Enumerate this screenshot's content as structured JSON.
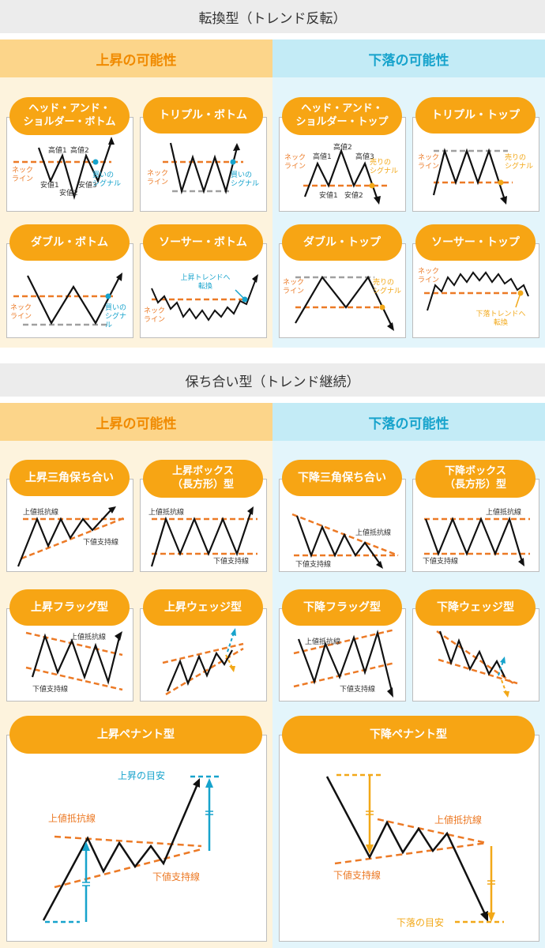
{
  "sections": [
    {
      "title": "転換型（トレンド反転）",
      "up_label": "上昇の可能性",
      "down_label": "下落の可能性"
    },
    {
      "title": "保ち合い型（トレンド継続）",
      "up_label": "上昇の可能性",
      "down_label": "下落の可能性"
    }
  ],
  "patterns": {
    "hs_bottom": {
      "title": "ヘッド・アンド・\nショルダー・ボトム",
      "neck": "ネック\nライン",
      "h1": "高値1",
      "h2": "高値2",
      "l1": "安値1",
      "l2": "安値2",
      "l3": "安値3",
      "signal": "買いの\nシグナル"
    },
    "triple_bottom": {
      "title": "トリプル・ボトム",
      "neck": "ネック\nライン",
      "signal": "買いの\nシグナル"
    },
    "double_bottom": {
      "title": "ダブル・ボトム",
      "neck": "ネック\nライン",
      "signal": "買いの\nシグナル"
    },
    "saucer_bottom": {
      "title": "ソーサー・ボトム",
      "neck": "ネック\nライン",
      "note": "上昇トレンドへ\n転換"
    },
    "hs_top": {
      "title": "ヘッド・アンド・\nショルダー・トップ",
      "neck": "ネック\nライン",
      "h1": "高値1",
      "h2": "高値2",
      "h3": "高値3",
      "l1": "安値1",
      "l2": "安値2",
      "signal": "売りの\nシグナル"
    },
    "triple_top": {
      "title": "トリプル・トップ",
      "neck": "ネック\nライン",
      "signal": "売りの\nシグナル"
    },
    "double_top": {
      "title": "ダブル・トップ",
      "neck": "ネック\nライン",
      "signal": "売りの\nシグナル"
    },
    "saucer_top": {
      "title": "ソーサー・トップ",
      "neck": "ネック\nライン",
      "note": "下落トレンドへ\n転換"
    },
    "asc_triangle": {
      "title": "上昇三角保ち合い",
      "res": "上値抵抗線",
      "sup": "下値支持線"
    },
    "box_up": {
      "title": "上昇ボックス\n（長方形）型",
      "res": "上値抵抗線",
      "sup": "下値支持線"
    },
    "desc_triangle": {
      "title": "下降三角保ち合い",
      "res": "上値抵抗線",
      "sup": "下値支持線"
    },
    "box_down": {
      "title": "下降ボックス\n（長方形）型",
      "res": "上値抵抗線",
      "sup": "下値支持線"
    },
    "flag_up": {
      "title": "上昇フラッグ型",
      "res": "上値抵抗線",
      "sup": "下値支持線"
    },
    "wedge_up": {
      "title": "上昇ウェッジ型"
    },
    "flag_down": {
      "title": "下降フラッグ型",
      "res": "上値抵抗線",
      "sup": "下値支持線"
    },
    "wedge_down": {
      "title": "下降ウェッジ型"
    },
    "pennant_up": {
      "title": "上昇ペナント型",
      "res": "上値抵抗線",
      "sup": "下値支持線",
      "target": "上昇の目安"
    },
    "pennant_down": {
      "title": "下降ペナント型",
      "res": "上値抵抗線",
      "sup": "下値支持線",
      "target": "下落の目安"
    }
  },
  "colors": {
    "orange": "#f7a514",
    "dash_orange": "#ec7a26",
    "blue": "#17a3cc",
    "gray": "#a0a0a0",
    "gold": "#f2a818"
  }
}
